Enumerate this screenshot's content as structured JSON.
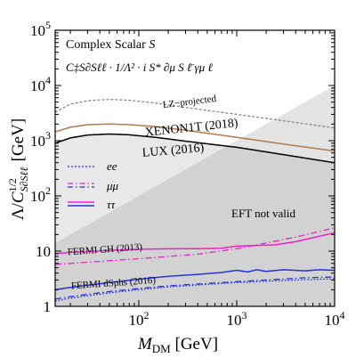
{
  "chart_data": {
    "type": "line",
    "xlabel": "M_DM [GeV]",
    "ylabel": "Λ/C^{1/2}_{S∂Sℓℓ} [GeV]",
    "x_scale": "log",
    "y_scale": "log",
    "xlim": [
      14,
      10000
    ],
    "ylim": [
      1,
      100000
    ],
    "x_ticks": [
      {
        "value": 100,
        "label": "10",
        "exp": "2"
      },
      {
        "value": 1000,
        "label": "10",
        "exp": "3"
      },
      {
        "value": 10000,
        "label": "10",
        "exp": "4"
      }
    ],
    "y_ticks": [
      {
        "value": 1,
        "label": "1",
        "exp": ""
      },
      {
        "value": 10,
        "label": "10",
        "exp": ""
      },
      {
        "value": 100,
        "label": "10",
        "exp": "2"
      },
      {
        "value": 1000,
        "label": "10",
        "exp": "3"
      },
      {
        "value": 10000,
        "label": "10",
        "exp": "4"
      },
      {
        "value": 100000,
        "label": "10",
        "exp": "5"
      }
    ],
    "title_line1_prefix": "Complex Scalar ",
    "title_line1_var": "S",
    "title_line2": "C‡S∂Sℓℓ · 1/Λ² · i S* ∂μ S ℓ̄ γμ ℓ",
    "annotations": {
      "lz": "LZ−projected",
      "xenon": "XENON1T (2018)",
      "lux": "LUX (2016)",
      "eft": "EFT not valid",
      "fermi_gh": "FERMI GH (2013)",
      "fermi_dsph": "FERMI dSphs (2016)"
    },
    "legend": [
      {
        "label": "ee",
        "style": "dotted",
        "color": "#2233dd"
      },
      {
        "label": "μμ",
        "style": "dashdot",
        "color": "#ee22cc"
      },
      {
        "label": "ττ",
        "style": "solid",
        "color": "#2233dd"
      }
    ],
    "series": [
      {
        "name": "LZ−projected",
        "color": "#888888",
        "style": "dashed",
        "x": [
          14,
          20,
          30,
          50,
          80,
          150,
          300,
          1000,
          3000,
          10000
        ],
        "y": [
          3300,
          4600,
          5300,
          5600,
          5400,
          4800,
          4000,
          3000,
          2300,
          1700
        ]
      },
      {
        "name": "XENON1T (2018)",
        "color": "#b07850",
        "style": "solid",
        "x": [
          14,
          20,
          30,
          50,
          80,
          150,
          300,
          1000,
          3000,
          10000
        ],
        "y": [
          1450,
          1750,
          1950,
          2000,
          1950,
          1800,
          1550,
          1150,
          870,
          650
        ]
      },
      {
        "name": "LUX (2016)",
        "color": "#000000",
        "style": "solid",
        "x": [
          14,
          20,
          30,
          50,
          80,
          150,
          300,
          1000,
          3000,
          10000
        ],
        "y": [
          900,
          1120,
          1270,
          1320,
          1280,
          1150,
          980,
          760,
          560,
          400
        ]
      },
      {
        "name": "ττ (FERMI GH)",
        "color": "#ee22cc",
        "style": "solid",
        "x": [
          14,
          20,
          50,
          100,
          200,
          400,
          700,
          1000,
          1500,
          2500,
          4000,
          6000,
          10000
        ],
        "y": [
          9.0,
          9.5,
          10.3,
          10.8,
          11.0,
          11.1,
          11.3,
          12.3,
          12.6,
          13.0,
          14.8,
          17.5,
          21.5
        ]
      },
      {
        "name": "μμ (FERMI GH)",
        "color": "#ee22cc",
        "style": "dashdot",
        "x": [
          14,
          20,
          50,
          100,
          200,
          400,
          1000,
          2000,
          4000,
          10000
        ],
        "y": [
          5.8,
          6.0,
          6.7,
          7.3,
          8.0,
          8.8,
          11.0,
          14.0,
          18.0,
          26.5
        ]
      },
      {
        "name": "ττ (FERMI dSphs)",
        "color": "#2233dd",
        "style": "solid",
        "x": [
          14,
          20,
          50,
          100,
          200,
          400,
          700,
          1000,
          1300,
          1600,
          2000,
          3000,
          5000,
          7000,
          10000
        ],
        "y": [
          2.0,
          2.2,
          2.7,
          3.1,
          3.5,
          3.8,
          4.1,
          4.5,
          4.2,
          4.6,
          4.3,
          4.6,
          4.4,
          4.6,
          4.5
        ]
      },
      {
        "name": "μμ (FERMI dSphs)",
        "color": "#2233dd",
        "style": "dashdot",
        "x": [
          14,
          20,
          50,
          100,
          200,
          500,
          1000,
          2000,
          5000,
          10000
        ],
        "y": [
          1.35,
          1.5,
          1.85,
          2.1,
          2.35,
          2.6,
          2.8,
          3.0,
          3.3,
          3.4
        ]
      },
      {
        "name": "ee (FERMI dSphs)",
        "color": "#2233dd",
        "style": "dotted",
        "x": [
          14,
          20,
          50,
          100,
          200,
          500,
          1000,
          2000,
          5000,
          10000
        ],
        "y": [
          1.25,
          1.4,
          1.75,
          2.0,
          2.25,
          2.5,
          2.7,
          2.85,
          3.05,
          3.15
        ]
      }
    ],
    "regions": [
      {
        "name": "EFT not valid",
        "boundary": "Λ = M_DM",
        "color": "#999999"
      },
      {
        "name": "LUX excluded",
        "color": "#cccccc"
      }
    ]
  }
}
